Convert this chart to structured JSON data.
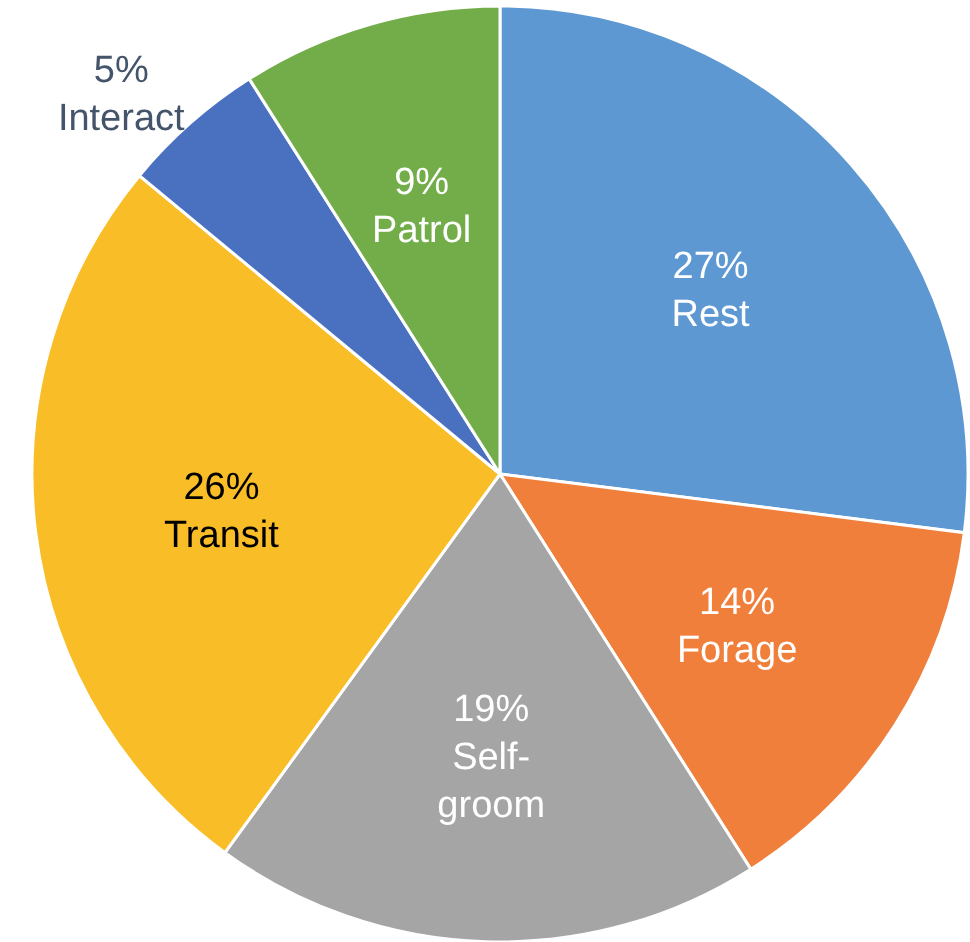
{
  "chart_data": {
    "type": "pie",
    "categories": [
      "Rest",
      "Forage",
      "Self-groom",
      "Transit",
      "Interact",
      "Patrol"
    ],
    "values": [
      27,
      14,
      19,
      26,
      5,
      9
    ],
    "colors": [
      "#5e98d2",
      "#ef7f3a",
      "#a5a5a5",
      "#f9bd27",
      "#4a70c0",
      "#72ad4a"
    ],
    "value_labels": [
      "27%",
      "14%",
      "19%",
      "26%",
      "5%",
      "9%"
    ]
  }
}
